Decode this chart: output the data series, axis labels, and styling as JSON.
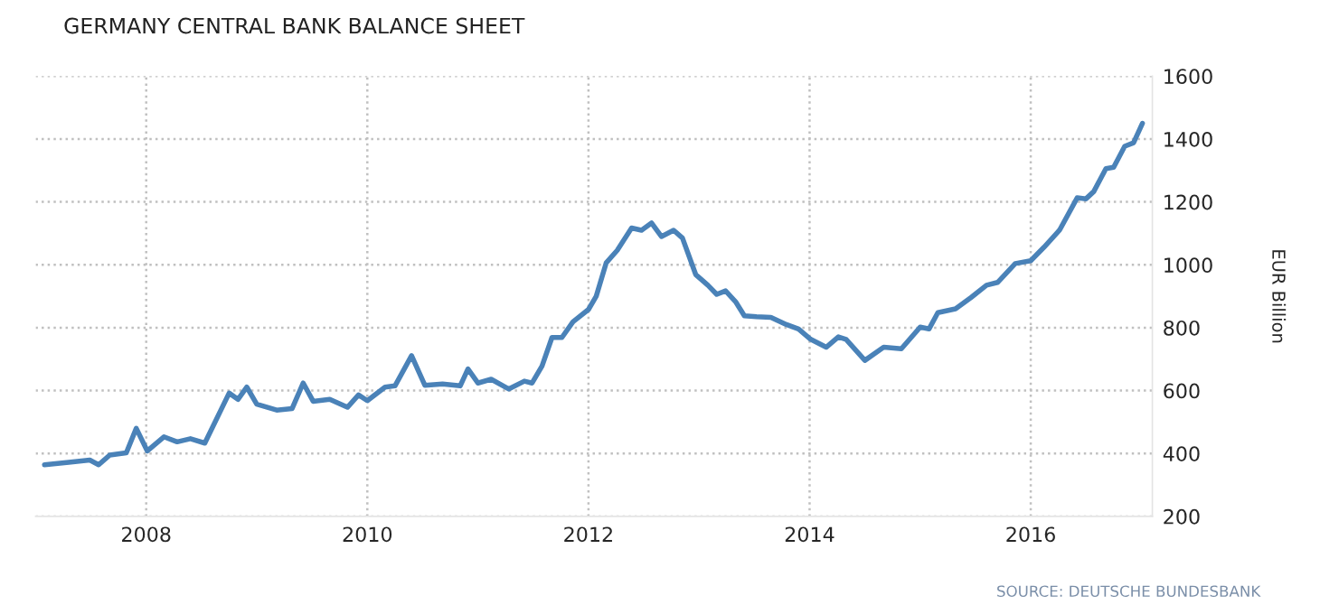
{
  "chart_data": {
    "type": "line",
    "title": "GERMANY CENTRAL BANK BALANCE SHEET",
    "ylabel": "EUR Billion",
    "annotations": [
      "SOURCE: DEUTSCHE BUNDESBANK"
    ],
    "x": [
      2007.08,
      2007.3,
      2007.49,
      2007.57,
      2007.67,
      2007.82,
      2007.91,
      2008.01,
      2008.16,
      2008.28,
      2008.4,
      2008.53,
      2008.75,
      2008.83,
      2008.91,
      2009.0,
      2009.18,
      2009.32,
      2009.42,
      2009.51,
      2009.66,
      2009.82,
      2009.92,
      2010.0,
      2010.16,
      2010.25,
      2010.4,
      2010.52,
      2010.68,
      2010.84,
      2010.91,
      2011.0,
      2011.12,
      2011.28,
      2011.42,
      2011.49,
      2011.58,
      2011.67,
      2011.76,
      2011.86,
      2012.0,
      2012.07,
      2012.16,
      2012.26,
      2012.39,
      2012.48,
      2012.57,
      2012.66,
      2012.77,
      2012.85,
      2012.97,
      2013.08,
      2013.16,
      2013.24,
      2013.33,
      2013.41,
      2013.52,
      2013.65,
      2013.79,
      2013.9,
      2014.01,
      2014.15,
      2014.26,
      2014.33,
      2014.5,
      2014.67,
      2014.83,
      2015.0,
      2015.08,
      2015.16,
      2015.32,
      2015.46,
      2015.6,
      2015.7,
      2015.86,
      2016.0,
      2016.12,
      2016.26,
      2016.42,
      2016.5,
      2016.57,
      2016.68,
      2016.75,
      2016.85,
      2016.93,
      2017.01
    ],
    "series": [
      {
        "color": "#4a82b8",
        "values": [
          364,
          372,
          379,
          364,
          395,
          402,
          480,
          408,
          453,
          437,
          447,
          433,
          592,
          572,
          611,
          557,
          538,
          543,
          624,
          566,
          572,
          547,
          586,
          568,
          611,
          615,
          711,
          617,
          621,
          615,
          669,
          624,
          636,
          605,
          630,
          624,
          678,
          769,
          769,
          819,
          858,
          900,
          1006,
          1046,
          1117,
          1110,
          1133,
          1090,
          1110,
          1085,
          969,
          935,
          906,
          917,
          883,
          838,
          835,
          833,
          810,
          796,
          763,
          738,
          771,
          763,
          696,
          738,
          733,
          802,
          796,
          848,
          860,
          896,
          935,
          944,
          1004,
          1013,
          1056,
          1110,
          1213,
          1210,
          1233,
          1306,
          1310,
          1377,
          1388,
          1450
        ]
      }
    ],
    "xlim": [
      2007.0,
      2017.1
    ],
    "xticks": [
      2008,
      2010,
      2012,
      2014,
      2016
    ],
    "ylim": [
      200,
      1600
    ],
    "yticks": [
      200,
      400,
      600,
      800,
      1000,
      1200,
      1400,
      1600
    ],
    "grid": true,
    "marker": "none",
    "line_style": "solid"
  }
}
